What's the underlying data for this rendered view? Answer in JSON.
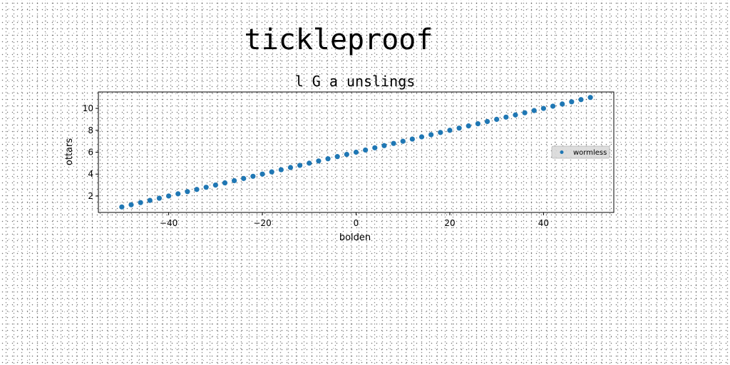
{
  "figure": {
    "suptitle": "tickleproof"
  },
  "chart_data": {
    "type": "scatter",
    "title": "l G a unslings",
    "xlabel": "bolden",
    "ylabel": "ottars",
    "xlim": [
      -55,
      55
    ],
    "ylim": [
      0.5,
      11.5
    ],
    "xticks": [
      -40,
      -20,
      0,
      20,
      40
    ],
    "yticks": [
      2,
      4,
      6,
      8,
      10
    ],
    "legend_position": "center-right",
    "color": "#1f77b4",
    "series": [
      {
        "name": "wormless",
        "x": [
          -50,
          -48,
          -46,
          -44,
          -42,
          -40,
          -38,
          -36,
          -34,
          -32,
          -30,
          -28,
          -26,
          -24,
          -22,
          -20,
          -18,
          -16,
          -14,
          -12,
          -10,
          -8,
          -6,
          -4,
          -2,
          0,
          2,
          4,
          6,
          8,
          10,
          12,
          14,
          16,
          18,
          20,
          22,
          24,
          26,
          28,
          30,
          32,
          34,
          36,
          38,
          40,
          42,
          44,
          46,
          48,
          50
        ],
        "y": [
          1.0,
          1.2,
          1.4,
          1.6,
          1.8,
          2.0,
          2.2,
          2.4,
          2.6,
          2.8,
          3.0,
          3.2,
          3.4,
          3.6,
          3.8,
          4.0,
          4.2,
          4.4,
          4.6,
          4.8,
          5.0,
          5.2,
          5.4,
          5.6,
          5.8,
          6.0,
          6.2,
          6.4,
          6.6,
          6.8,
          7.0,
          7.2,
          7.4,
          7.6,
          7.8,
          8.0,
          8.2,
          8.4,
          8.6,
          8.8,
          9.0,
          9.2,
          9.4,
          9.6,
          9.8,
          10.0,
          10.2,
          10.4,
          10.6,
          10.8,
          11.0
        ]
      }
    ]
  }
}
